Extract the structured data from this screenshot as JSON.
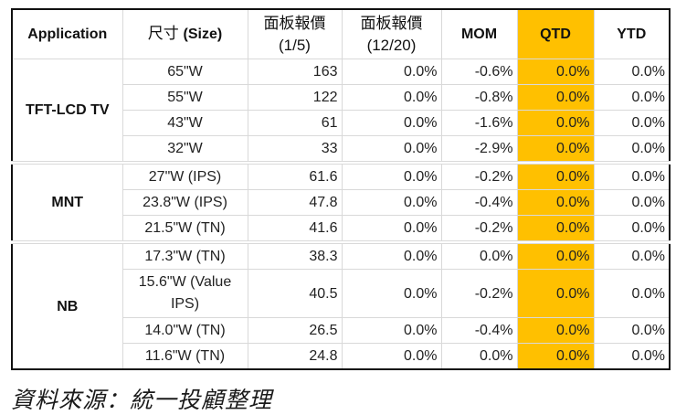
{
  "table": {
    "headers": {
      "application": "Application",
      "size_cjk": "尺寸",
      "size_en": "(Size)",
      "price_current_line1": "面板報價",
      "price_current_line2": "(1/5)",
      "price_prev_line1": "面板報價",
      "price_prev_line2": "(12/20)",
      "mom": "MOM",
      "qtd": "QTD",
      "ytd": "YTD"
    },
    "highlight_color": "#FFC000",
    "groups": [
      {
        "application": "TFT-LCD TV",
        "rows": [
          {
            "size": "65\"W",
            "price_current": "163",
            "price_prev": "0.0%",
            "mom": "-0.6%",
            "qtd": "0.0%",
            "ytd": "0.0%"
          },
          {
            "size": "55\"W",
            "price_current": "122",
            "price_prev": "0.0%",
            "mom": "-0.8%",
            "qtd": "0.0%",
            "ytd": "0.0%"
          },
          {
            "size": "43\"W",
            "price_current": "61",
            "price_prev": "0.0%",
            "mom": "-1.6%",
            "qtd": "0.0%",
            "ytd": "0.0%"
          },
          {
            "size": "32\"W",
            "price_current": "33",
            "price_prev": "0.0%",
            "mom": "-2.9%",
            "qtd": "0.0%",
            "ytd": "0.0%"
          }
        ]
      },
      {
        "application": "MNT",
        "rows": [
          {
            "size": "27\"W (IPS)",
            "price_current": "61.6",
            "price_prev": "0.0%",
            "mom": "-0.2%",
            "qtd": "0.0%",
            "ytd": "0.0%"
          },
          {
            "size": "23.8\"W (IPS)",
            "price_current": "47.8",
            "price_prev": "0.0%",
            "mom": "-0.4%",
            "qtd": "0.0%",
            "ytd": "0.0%"
          },
          {
            "size": "21.5\"W (TN)",
            "price_current": "41.6",
            "price_prev": "0.0%",
            "mom": "-0.2%",
            "qtd": "0.0%",
            "ytd": "0.0%"
          }
        ]
      },
      {
        "application": "NB",
        "rows": [
          {
            "size": "17.3\"W (TN)",
            "price_current": "38.3",
            "price_prev": "0.0%",
            "mom": "0.0%",
            "qtd": "0.0%",
            "ytd": "0.0%"
          },
          {
            "size": "15.6\"W (Value IPS)",
            "price_current": "40.5",
            "price_prev": "0.0%",
            "mom": "-0.2%",
            "qtd": "0.0%",
            "ytd": "0.0%"
          },
          {
            "size": "14.0\"W (TN)",
            "price_current": "26.5",
            "price_prev": "0.0%",
            "mom": "-0.4%",
            "qtd": "0.0%",
            "ytd": "0.0%"
          },
          {
            "size": "11.6\"W (TN)",
            "price_current": "24.8",
            "price_prev": "0.0%",
            "mom": "0.0%",
            "qtd": "0.0%",
            "ytd": "0.0%"
          }
        ]
      }
    ]
  },
  "caption": "資料來源：統一投顧整理"
}
